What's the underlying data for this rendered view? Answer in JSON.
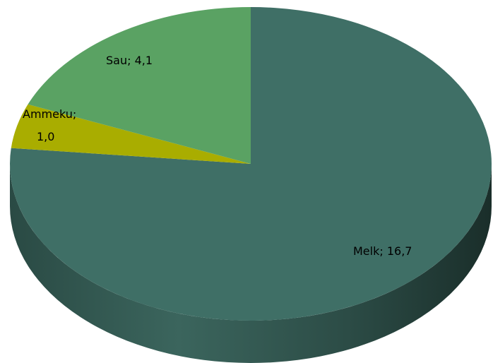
{
  "chart_data": {
    "type": "pie",
    "title": "",
    "series": [
      {
        "name": "",
        "values": [
          16.7,
          1.0,
          4.1
        ]
      }
    ],
    "categories": [
      "Melk",
      "Ammeku",
      "Sau"
    ],
    "slices": [
      {
        "label": "Melk",
        "value": 16.7,
        "display": "16,7",
        "color": "#3f6f66"
      },
      {
        "label": "Ammeku",
        "value": 1.0,
        "display": "1,0",
        "color": "#a9ad00"
      },
      {
        "label": "Sau",
        "value": 4.1,
        "display": "4,1",
        "color": "#5aa263"
      }
    ],
    "legend": "none",
    "style": "3d-pie",
    "label_format": "category; value"
  }
}
